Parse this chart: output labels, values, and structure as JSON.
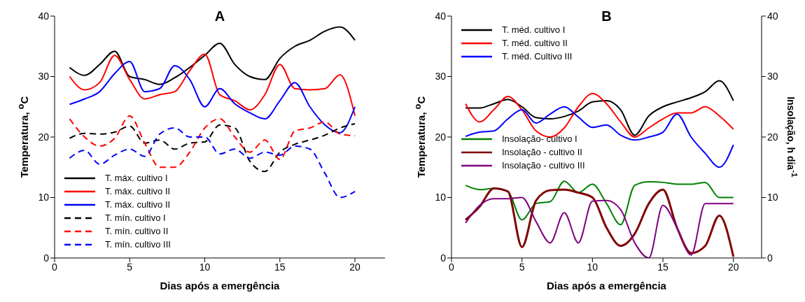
{
  "chart_data": [
    {
      "type": "line",
      "title": "A",
      "xlabel": "Dias após a emergência",
      "ylabel": "Temperatura, $^{o}$C",
      "x": [
        1,
        2,
        3,
        4,
        5,
        6,
        7,
        8,
        9,
        10,
        11,
        12,
        13,
        14,
        15,
        16,
        17,
        18,
        19,
        20
      ],
      "xlim": [
        0,
        22
      ],
      "xticks": [
        0,
        5,
        10,
        15,
        20
      ],
      "ylim": [
        0,
        40
      ],
      "yticks": [
        0,
        10,
        20,
        30,
        40
      ],
      "legend": "bottom left",
      "series": [
        {
          "name": "T. máx. cultivo I",
          "color": "#000000",
          "line_style": "solid",
          "values": [
            31.5,
            30.2,
            32,
            34.2,
            30,
            29.5,
            28.7,
            29.8,
            31.5,
            33.5,
            35.5,
            32,
            30,
            29.5,
            33,
            35,
            36,
            37.5,
            38.2,
            36
          ]
        },
        {
          "name": "T. máx. cultivo II",
          "color": "#ff0000",
          "line_style": "solid",
          "values": [
            30,
            27.8,
            29,
            33.5,
            29.5,
            26.3,
            27,
            27.5,
            31,
            33.7,
            27,
            26,
            24.5,
            27,
            32,
            28,
            27.8,
            28,
            30.3,
            23.5
          ]
        },
        {
          "name": "T. máx. cultivo II",
          "color": "#0000ff",
          "line_style": "solid",
          "values": [
            25.4,
            26.3,
            27.5,
            30.5,
            32.5,
            27.5,
            28,
            31.8,
            29.5,
            25,
            28,
            25.5,
            24,
            23,
            26,
            29,
            25,
            22,
            20.7,
            25
          ]
        },
        {
          "name": "T. mín. cultivo I",
          "color": "#000000",
          "line_style": "dashed",
          "values": [
            19.8,
            20.6,
            20.5,
            20.8,
            21.8,
            19,
            19.5,
            18,
            19,
            19.2,
            22,
            21.5,
            16,
            14.3,
            17.5,
            18.8,
            19.5,
            20.3,
            21.5,
            22.2
          ]
        },
        {
          "name": "T. mín. cultivo II",
          "color": "#ff0000",
          "line_style": "dashed",
          "values": [
            23,
            20,
            18.5,
            19.8,
            23.5,
            19,
            15,
            15,
            17.5,
            21.5,
            23,
            20,
            17.5,
            19.5,
            16.3,
            21,
            21.5,
            22.5,
            20.5,
            20.2
          ]
        },
        {
          "name": "T. mín. cultivo III",
          "color": "#0000ff",
          "line_style": "dashed",
          "values": [
            16.5,
            17.8,
            15.5,
            17,
            18,
            16.8,
            20.5,
            21.5,
            20,
            20,
            17.2,
            18,
            16.5,
            17.5,
            17,
            18.5,
            18,
            14,
            10,
            11
          ]
        }
      ]
    },
    {
      "type": "line",
      "title": "B",
      "xlabel": "Dias após a emergência",
      "ylabel": "Temperatura, $^{o}$C",
      "y2label": "Insolação, h dia$^{-1}$",
      "x": [
        1,
        2,
        3,
        4,
        5,
        6,
        7,
        8,
        9,
        10,
        11,
        12,
        13,
        14,
        15,
        16,
        17,
        18,
        19,
        20
      ],
      "xlim": [
        0,
        22
      ],
      "xticks": [
        0,
        5,
        10,
        15,
        20
      ],
      "ylim": [
        0,
        40
      ],
      "yticks": [
        0,
        10,
        20,
        30,
        40
      ],
      "y2lim": [
        0,
        40
      ],
      "y2ticks": [
        0,
        10,
        20,
        30,
        40
      ],
      "legend": "top left",
      "series": [
        {
          "name": "T. méd. cultivo I",
          "color": "#000000",
          "values": [
            24.8,
            24.8,
            25.5,
            26.2,
            25,
            23.2,
            23,
            23.4,
            24.3,
            25.8,
            26,
            24.5,
            20.3,
            23.5,
            25,
            25.8,
            26.5,
            27.5,
            29.3,
            26
          ]
        },
        {
          "name": "T. méd. cultivo II",
          "color": "#ff0000",
          "values": [
            25.5,
            22.5,
            24.5,
            26.7,
            24.5,
            21,
            20,
            21.5,
            25,
            27.2,
            25.5,
            22.5,
            20,
            21.5,
            23,
            24,
            24,
            25,
            23.5,
            21.3
          ]
        },
        {
          "name": "T. méd. Cultivo III",
          "color": "#0000ff",
          "values": [
            20.1,
            20.8,
            21,
            23,
            24.5,
            22.3,
            23.8,
            25,
            23.3,
            21.6,
            22,
            20.3,
            19.5,
            20,
            20.8,
            23.8,
            20,
            17.3,
            15,
            18.7
          ]
        },
        {
          "name": "Insolação- cultivo I",
          "color": "#008000",
          "axis": "y2",
          "values": [
            12,
            11.3,
            11.5,
            11,
            6.3,
            9,
            9.3,
            12.7,
            10.8,
            12.2,
            9,
            5.5,
            12,
            12.6,
            12.5,
            12.2,
            12.2,
            12.5,
            10,
            10
          ]
        },
        {
          "name": "Insolação - cultivo II",
          "color": "#800000",
          "axis": "y2",
          "values": [
            6.3,
            8.5,
            11.5,
            11,
            1.8,
            9.5,
            11.2,
            11.3,
            10.8,
            10,
            5,
            2,
            4,
            9,
            11.3,
            5,
            0.8,
            2,
            7,
            0.2
          ]
        },
        {
          "name": "Insolação - cultivo III",
          "color": "#800080",
          "axis": "y2",
          "values": [
            5.8,
            8.7,
            9.8,
            9.8,
            10,
            6,
            2.5,
            7.5,
            2.5,
            9.4,
            9.5,
            8,
            2.5,
            0,
            8.7,
            5,
            0.5,
            9,
            9,
            9
          ]
        }
      ]
    }
  ]
}
